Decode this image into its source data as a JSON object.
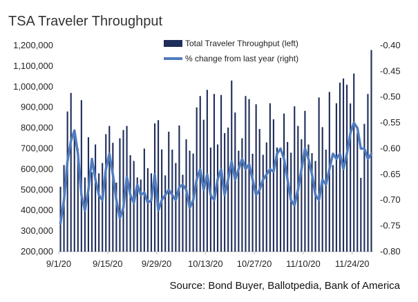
{
  "title": "TSA Traveler Throughput",
  "source": "Source: Bond Buyer, Ballotpedia, Bank of America",
  "colors": {
    "bars": "#1f2d5a",
    "line": "#4f7cc0",
    "axis": "#bfbfbf"
  },
  "chart_data": {
    "type": "bar",
    "title": "TSA Traveler Throughput",
    "xlabel": "",
    "ylabel": "",
    "ylim_left": [
      200000,
      1200000
    ],
    "ylim_right": [
      -0.8,
      -0.4
    ],
    "left_ticks": [
      "1,200,000",
      "1,100,000",
      "1,000,000",
      "900,000",
      "800,000",
      "700,000",
      "600,000",
      "500,000",
      "400,000",
      "300,000",
      "200,000"
    ],
    "right_ticks": [
      "-0.40",
      "-0.45",
      "-0.50",
      "-0.55",
      "-0.60",
      "-0.65",
      "-0.70",
      "-0.75",
      "-0.80"
    ],
    "x_tick_labels": [
      "9/1/20",
      "9/15/20",
      "9/29/20",
      "10/13/20",
      "10/27/20",
      "11/10/20",
      "11/24/20"
    ],
    "x_tick_index": [
      0,
      14,
      28,
      42,
      56,
      70,
      84
    ],
    "legend": {
      "bar": "Total Traveler Throughput (left)",
      "line": "% change from last year (right)"
    },
    "series": [
      {
        "name": "Total Traveler Throughput (left)",
        "axis": "left",
        "type": "bar",
        "values": [
          515000,
          620000,
          880000,
          970000,
          760000,
          700000,
          935000,
          560000,
          755000,
          585000,
          720000,
          580000,
          630000,
          770000,
          810000,
          728000,
          535000,
          750000,
          790000,
          810000,
          668000,
          640000,
          560000,
          550000,
          700000,
          605000,
          580000,
          822000,
          838000,
          696000,
          570000,
          782000,
          695000,
          630000,
          812000,
          573000,
          745000,
          690000,
          676000,
          900000,
          955000,
          840000,
          985000,
          705000,
          965000,
          720000,
          960000,
          775000,
          802000,
          1030000,
          875000,
          690000,
          750000,
          955000,
          940000,
          675000,
          915000,
          795000,
          670000,
          730000,
          920000,
          842000,
          705000,
          655000,
          870000,
          732000,
          680000,
          905000,
          810000,
          745000,
          883000,
          720000,
          678000,
          640000,
          948000,
          804000,
          695000,
          975000,
          620000,
          920000,
          1020000,
          1040000,
          1010000,
          919000,
          1064000,
          775000,
          558000,
          820000,
          965000,
          1178000
        ]
      },
      {
        "name": "% change from last year (right)",
        "axis": "right",
        "type": "line",
        "values": [
          -0.745,
          -0.7,
          -0.625,
          -0.585,
          -0.565,
          -0.61,
          -0.69,
          -0.72,
          -0.68,
          -0.62,
          -0.66,
          -0.69,
          -0.7,
          -0.64,
          -0.61,
          -0.65,
          -0.7,
          -0.735,
          -0.715,
          -0.655,
          -0.69,
          -0.705,
          -0.67,
          -0.69,
          -0.685,
          -0.705,
          -0.7,
          -0.65,
          -0.72,
          -0.7,
          -0.69,
          -0.68,
          -0.69,
          -0.7,
          -0.675,
          -0.67,
          -0.68,
          -0.715,
          -0.7,
          -0.66,
          -0.64,
          -0.68,
          -0.65,
          -0.69,
          -0.7,
          -0.66,
          -0.64,
          -0.69,
          -0.66,
          -0.625,
          -0.66,
          -0.64,
          -0.62,
          -0.64,
          -0.63,
          -0.66,
          -0.69,
          -0.68,
          -0.66,
          -0.65,
          -0.64,
          -0.645,
          -0.61,
          -0.6,
          -0.62,
          -0.66,
          -0.7,
          -0.71,
          -0.68,
          -0.64,
          -0.6,
          -0.62,
          -0.65,
          -0.69,
          -0.7,
          -0.66,
          -0.67,
          -0.64,
          -0.61,
          -0.62,
          -0.61,
          -0.64,
          -0.61,
          -0.57,
          -0.55,
          -0.56,
          -0.6,
          -0.6,
          -0.62,
          -0.61
        ]
      }
    ]
  }
}
